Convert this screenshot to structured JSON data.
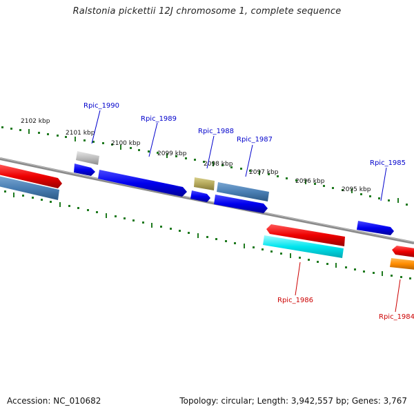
{
  "title": "Ralstonia pickettii 12J chromosome 1, complete sequence",
  "footer": {
    "accession": "Accession: NC_010682",
    "topology": "Topology: circular; Length: 3,942,557 bp; Genes: 3,767"
  },
  "colors": {
    "backbone": "#8a8a8a",
    "tick": "#1f7a1f",
    "label_forward": "#0000cc",
    "label_reverse": "#cc0000"
  },
  "scale_labels": [
    "2102 kbp",
    "2101 kbp",
    "2100 kbp",
    "2099 kbp",
    "2098 kbp",
    "2097 kbp",
    "2096 kbp",
    "2095 kbp"
  ],
  "gene_labels": [
    {
      "id": "Rpic_1990",
      "strand": "forward"
    },
    {
      "id": "Rpic_1989",
      "strand": "forward"
    },
    {
      "id": "Rpic_1988",
      "strand": "forward"
    },
    {
      "id": "Rpic_1987",
      "strand": "forward"
    },
    {
      "id": "Rpic_1985",
      "strand": "forward"
    },
    {
      "id": "Rpic_1986",
      "strand": "reverse"
    },
    {
      "id": "Rpic_1984",
      "strand": "reverse"
    }
  ]
}
